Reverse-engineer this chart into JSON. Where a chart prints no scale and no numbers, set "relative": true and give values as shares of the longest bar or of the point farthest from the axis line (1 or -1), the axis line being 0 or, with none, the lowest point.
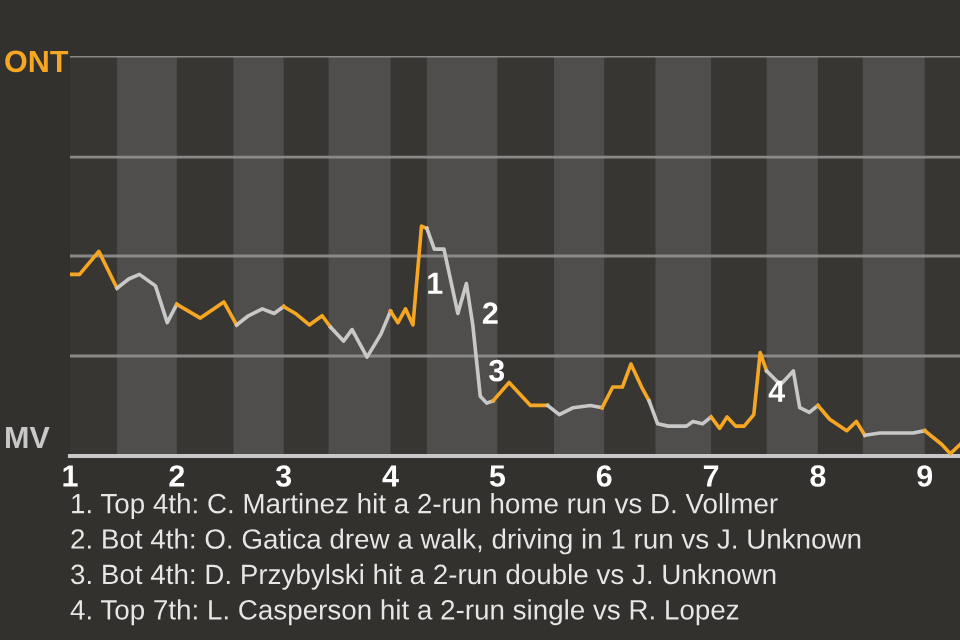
{
  "chart_data": {
    "type": "line",
    "relative": true,
    "series": [
      {
        "color": "#f5a623",
        "x": [
          1.0,
          1.09,
          1.27,
          1.44
        ],
        "values": [
          0.79,
          0.79,
          0.89,
          0.73
        ]
      },
      {
        "color": "#c8c8c8",
        "x": [
          1.44,
          1.55,
          1.65,
          1.8,
          1.91,
          2.0
        ],
        "values": [
          0.73,
          0.77,
          0.79,
          0.74,
          0.58,
          0.66
        ]
      },
      {
        "color": "#f5a623",
        "x": [
          2.0,
          2.22,
          2.44,
          2.56
        ],
        "values": [
          0.66,
          0.6,
          0.67,
          0.57
        ]
      },
      {
        "color": "#c8c8c8",
        "x": [
          2.56,
          2.67,
          2.8,
          2.91,
          3.0
        ],
        "values": [
          0.57,
          0.61,
          0.64,
          0.62,
          0.65
        ]
      },
      {
        "color": "#f5a623",
        "x": [
          3.0,
          3.11,
          3.24,
          3.36,
          3.44
        ],
        "values": [
          0.65,
          0.62,
          0.57,
          0.61,
          0.56
        ]
      },
      {
        "color": "#c8c8c8",
        "x": [
          3.44,
          3.56,
          3.64,
          3.78,
          3.91,
          4.0
        ],
        "values": [
          0.56,
          0.5,
          0.55,
          0.43,
          0.53,
          0.63
        ]
      },
      {
        "color": "#f5a623",
        "x": [
          4.0,
          4.07,
          4.14,
          4.21,
          4.29,
          4.34
        ],
        "values": [
          0.63,
          0.58,
          0.64,
          0.57,
          1,
          0.99
        ]
      },
      {
        "color": "#c8c8c8",
        "x": [
          4.34,
          4.41,
          4.5,
          4.63,
          4.71,
          4.77,
          4.84,
          4.9,
          4.96
        ],
        "values": [
          0.99,
          0.9,
          0.9,
          0.62,
          0.75,
          0.57,
          0.26,
          0.23,
          0.24
        ]
      },
      {
        "color": "#f5a623",
        "x": [
          4.96,
          5.11,
          5.31,
          5.47
        ],
        "values": [
          0.24,
          0.32,
          0.22,
          0.22
        ]
      },
      {
        "color": "#c8c8c8",
        "x": [
          5.47,
          5.58,
          5.71,
          5.87,
          5.98
        ],
        "values": [
          0.22,
          0.18,
          0.21,
          0.22,
          0.21
        ]
      },
      {
        "color": "#f5a623",
        "x": [
          5.98,
          6.08,
          6.17,
          6.25,
          6.35,
          6.42
        ],
        "values": [
          0.21,
          0.3,
          0.3,
          0.4,
          0.3,
          0.24
        ]
      },
      {
        "color": "#c8c8c8",
        "x": [
          6.42,
          6.5,
          6.6,
          6.77,
          6.83,
          6.92,
          7.0
        ],
        "values": [
          0.24,
          0.14,
          0.13,
          0.13,
          0.15,
          0.14,
          0.17
        ]
      },
      {
        "color": "#f5a623",
        "x": [
          7.0,
          7.08,
          7.15,
          7.23,
          7.31,
          7.4,
          7.46,
          7.52
        ],
        "values": [
          0.17,
          0.12,
          0.17,
          0.13,
          0.13,
          0.18,
          0.45,
          0.37
        ]
      },
      {
        "color": "#c8c8c8",
        "x": [
          7.52,
          7.65,
          7.77,
          7.83,
          7.92,
          8.0
        ],
        "values": [
          0.37,
          0.31,
          0.37,
          0.21,
          0.19,
          0.22
        ]
      },
      {
        "color": "#f5a623",
        "x": [
          8.0,
          8.11,
          8.27,
          8.36,
          8.44
        ],
        "values": [
          0.22,
          0.16,
          0.11,
          0.15,
          0.09
        ]
      },
      {
        "color": "#c8c8c8",
        "x": [
          8.44,
          8.58,
          8.89,
          9.0
        ],
        "values": [
          0.09,
          0.1,
          0.1,
          0.11
        ]
      },
      {
        "color": "#f5a623",
        "x": [
          9.0,
          9.16,
          9.24,
          9.33
        ],
        "values": [
          0.11,
          0.05,
          0.01,
          0.05
        ]
      }
    ],
    "xlim": [
      1,
      9.33
    ],
    "xticks": [
      1,
      2,
      3,
      4,
      5,
      6,
      7,
      8,
      9
    ],
    "tick_labels": "x",
    "ref_lines": [
      {
        "axis": "y",
        "value": 0.435,
        "color": "#8a8987"
      },
      {
        "axis": "y",
        "value": 0.87,
        "color": "#8a8987"
      },
      {
        "axis": "y",
        "value": 1.3,
        "color": "#8a8987"
      },
      {
        "axis": "y",
        "value": 1.74,
        "color": "#8a8987"
      }
    ],
    "bands": [
      {
        "axis": "x",
        "from": 1.44,
        "to": 2.0,
        "color": "#4f4e4c"
      },
      {
        "axis": "x",
        "from": 2.53,
        "to": 3.0,
        "color": "#4f4e4c"
      },
      {
        "axis": "x",
        "from": 3.42,
        "to": 4.0,
        "color": "#4f4e4c"
      },
      {
        "axis": "x",
        "from": 4.34,
        "to": 5.0,
        "color": "#4f4e4c"
      },
      {
        "axis": "x",
        "from": 5.53,
        "to": 6.0,
        "color": "#4f4e4c"
      },
      {
        "axis": "x",
        "from": 6.48,
        "to": 7.0,
        "color": "#4f4e4c"
      },
      {
        "axis": "x",
        "from": 7.52,
        "to": 8.0,
        "color": "#4f4e4c"
      },
      {
        "axis": "x",
        "from": 8.42,
        "to": 9.0,
        "color": "#4f4e4c"
      }
    ],
    "annotations": [
      {
        "text": "1",
        "x": 4.31,
        "y": 0.74
      },
      {
        "text": "2",
        "x": 4.83,
        "y": 0.61
      },
      {
        "text": "3",
        "x": 4.89,
        "y": 0.36
      },
      {
        "text": "4",
        "x": 7.51,
        "y": 0.27
      },
      "ONT",
      "MV",
      "1. Top 4th: C. Martinez hit a 2-run home run vs D. Vollmer",
      "2. Bot 4th: O. Gatica drew a walk, driving in 1 run vs J. Unknown",
      "3. Bot 4th: D. Przybylski hit a 2-run double vs J. Unknown",
      "4. Top 7th: L. Casperson hit a 2-run single vs R. Lopez"
    ]
  }
}
